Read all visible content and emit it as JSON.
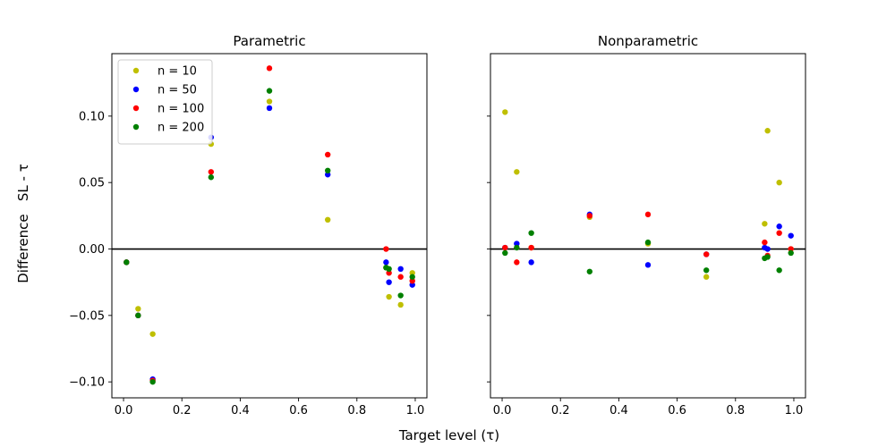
{
  "figure": {
    "xlabel": "Target level (τ)",
    "ylabel": "Difference   SL - τ"
  },
  "chart_data": [
    {
      "type": "scatter",
      "title": "Parametric",
      "xlim": [
        -0.04,
        1.04
      ],
      "ylim": [
        -0.112,
        0.147
      ],
      "xticks": [
        0.0,
        0.2,
        0.4,
        0.6,
        0.8,
        1.0
      ],
      "xtick_labels": [
        "0.0",
        "0.2",
        "0.4",
        "0.6",
        "0.8",
        "1.0"
      ],
      "yticks": [
        -0.1,
        -0.05,
        0.0,
        0.05,
        0.1
      ],
      "ytick_labels": [
        "−0.10",
        "−0.05",
        "0.00",
        "0.05",
        "0.10"
      ],
      "hline": 0,
      "legend": "top-left",
      "series": [
        {
          "name": "n = 10",
          "color": "#bfbf00",
          "x": [
            0.01,
            0.05,
            0.1,
            0.3,
            0.5,
            0.7,
            0.9,
            0.91,
            0.95,
            0.99
          ],
          "y": [
            -0.01,
            -0.045,
            -0.064,
            0.079,
            0.111,
            0.022,
            -0.014,
            -0.036,
            -0.042,
            -0.018
          ]
        },
        {
          "name": "n = 50",
          "color": "#0000ff",
          "x": [
            0.01,
            0.05,
            0.1,
            0.3,
            0.5,
            0.7,
            0.9,
            0.91,
            0.95,
            0.99
          ],
          "y": [
            -0.01,
            -0.05,
            -0.098,
            0.084,
            0.106,
            0.056,
            -0.01,
            -0.025,
            -0.015,
            -0.027
          ]
        },
        {
          "name": "n = 100",
          "color": "#ff0000",
          "x": [
            0.01,
            0.05,
            0.1,
            0.3,
            0.5,
            0.7,
            0.9,
            0.91,
            0.95,
            0.99
          ],
          "y": [
            -0.01,
            -0.05,
            -0.099,
            0.058,
            0.136,
            0.071,
            0.0,
            -0.018,
            -0.021,
            -0.024
          ]
        },
        {
          "name": "n = 200",
          "color": "#008000",
          "x": [
            0.01,
            0.05,
            0.1,
            0.3,
            0.5,
            0.7,
            0.9,
            0.91,
            0.95,
            0.99
          ],
          "y": [
            -0.01,
            -0.05,
            -0.1,
            0.054,
            0.119,
            0.059,
            -0.014,
            -0.015,
            -0.035,
            -0.021
          ]
        }
      ]
    },
    {
      "type": "scatter",
      "title": "Nonparametric",
      "xlim": [
        -0.04,
        1.04
      ],
      "ylim": [
        -0.112,
        0.147
      ],
      "xticks": [
        0.0,
        0.2,
        0.4,
        0.6,
        0.8,
        1.0
      ],
      "xtick_labels": [
        "0.0",
        "0.2",
        "0.4",
        "0.6",
        "0.8",
        "1.0"
      ],
      "yticks": [
        -0.1,
        -0.05,
        0.0,
        0.05,
        0.1
      ],
      "hline": 0,
      "series": [
        {
          "name": "n = 10",
          "color": "#bfbf00",
          "x": [
            0.01,
            0.05,
            0.1,
            0.3,
            0.5,
            0.7,
            0.9,
            0.91,
            0.95,
            0.99
          ],
          "y": [
            0.103,
            0.058,
            0.001,
            0.024,
            0.004,
            -0.021,
            0.019,
            0.089,
            0.05,
            0.0
          ]
        },
        {
          "name": "n = 50",
          "color": "#0000ff",
          "x": [
            0.01,
            0.05,
            0.1,
            0.3,
            0.5,
            0.7,
            0.9,
            0.91,
            0.95,
            0.99
          ],
          "y": [
            0.001,
            0.004,
            -0.01,
            0.026,
            -0.012,
            -0.004,
            0.001,
            0.0,
            0.017,
            0.01
          ]
        },
        {
          "name": "n = 100",
          "color": "#ff0000",
          "x": [
            0.01,
            0.05,
            0.1,
            0.3,
            0.5,
            0.7,
            0.9,
            0.91,
            0.95,
            0.99
          ],
          "y": [
            0.001,
            -0.01,
            0.001,
            0.025,
            0.026,
            -0.004,
            0.005,
            -0.005,
            0.012,
            0.0
          ]
        },
        {
          "name": "n = 200",
          "color": "#008000",
          "x": [
            0.01,
            0.05,
            0.1,
            0.3,
            0.5,
            0.7,
            0.9,
            0.91,
            0.95,
            0.99
          ],
          "y": [
            -0.003,
            0.001,
            0.012,
            -0.017,
            0.005,
            -0.016,
            -0.007,
            -0.006,
            -0.016,
            -0.003
          ]
        }
      ]
    }
  ]
}
